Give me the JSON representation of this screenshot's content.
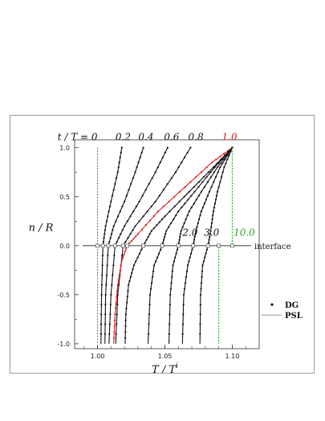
{
  "chart_data": {
    "type": "line",
    "xlabel": "T / T",
    "xlabel_superscript": "i",
    "ylabel": "n / R",
    "xlim": [
      0.983,
      1.12
    ],
    "ylim": [
      -1.05,
      1.08
    ],
    "x_ticks": [
      "1.00",
      "1.05",
      "1.10"
    ],
    "x_tick_values": [
      1.0,
      1.05,
      1.1
    ],
    "y_ticks": [
      "1.0",
      "0.5",
      "0.0",
      "-0.5",
      "-1.0"
    ],
    "y_tick_values": [
      1.0,
      0.5,
      0.0,
      -0.5,
      -1.0
    ],
    "time_label_prefix": "t / T = ",
    "interface_label": "interface",
    "grid": false,
    "legend_position": "bottom-right",
    "legend": [
      {
        "label": "DG",
        "marker": "dot"
      },
      {
        "label": "PSL",
        "marker": "line"
      }
    ],
    "colors": {
      "default": "#111111",
      "initial": "#1e8fd8",
      "highlight": "#e02020",
      "steady": "#2ca02c",
      "psl": "#9a9a9a"
    },
    "series": [
      {
        "name": "0",
        "label_style": "default",
        "color": "#1e8fd8",
        "points": [
          [
            1.0,
            1.0
          ],
          [
            1.0,
            0.0
          ],
          [
            1.0,
            -1.0
          ]
        ]
      },
      {
        "name": "0.2",
        "label_style": "default",
        "color": "#111111",
        "points": [
          [
            1.018,
            1.0
          ],
          [
            1.015,
            0.75
          ],
          [
            1.01,
            0.45
          ],
          [
            1.006,
            0.2
          ],
          [
            1.004,
            0.0
          ],
          [
            1.003,
            -0.5
          ],
          [
            1.0025,
            -1.0
          ]
        ]
      },
      {
        "name": "0.4",
        "label_style": "default",
        "color": "#111111",
        "points": [
          [
            1.034,
            1.0
          ],
          [
            1.028,
            0.75
          ],
          [
            1.02,
            0.45
          ],
          [
            1.012,
            0.2
          ],
          [
            1.008,
            0.0
          ],
          [
            1.006,
            -0.5
          ],
          [
            1.0055,
            -1.0
          ]
        ]
      },
      {
        "name": "0.6",
        "label_style": "default",
        "color": "#111111",
        "points": [
          [
            1.052,
            1.0
          ],
          [
            1.043,
            0.75
          ],
          [
            1.031,
            0.45
          ],
          [
            1.02,
            0.2
          ],
          [
            1.013,
            0.0
          ],
          [
            1.01,
            -0.5
          ],
          [
            1.0085,
            -1.0
          ]
        ]
      },
      {
        "name": "0.8",
        "label_style": "default",
        "color": "#111111",
        "points": [
          [
            1.069,
            1.0
          ],
          [
            1.058,
            0.75
          ],
          [
            1.043,
            0.45
          ],
          [
            1.028,
            0.2
          ],
          [
            1.019,
            0.0
          ],
          [
            1.015,
            -0.5
          ],
          [
            1.0135,
            -1.0
          ]
        ]
      },
      {
        "name": "1.0",
        "label_style": "highlight",
        "color": "#e02020",
        "points": [
          [
            1.1,
            1.0
          ],
          [
            1.085,
            0.85
          ],
          [
            1.065,
            0.6
          ],
          [
            1.045,
            0.35
          ],
          [
            1.03,
            0.12
          ],
          [
            1.022,
            0.0
          ],
          [
            1.018,
            -0.15
          ],
          [
            1.015,
            -0.4
          ],
          [
            1.013,
            -0.7
          ],
          [
            1.012,
            -1.0
          ]
        ]
      },
      {
        "name": "",
        "label_style": "default",
        "color": "#111111",
        "points": [
          [
            1.1,
            1.0
          ],
          [
            1.086,
            0.8
          ],
          [
            1.068,
            0.55
          ],
          [
            1.05,
            0.3
          ],
          [
            1.04,
            0.15
          ],
          [
            1.034,
            0.0
          ],
          [
            1.027,
            -0.2
          ],
          [
            1.023,
            -0.4
          ],
          [
            1.021,
            -0.7
          ],
          [
            1.0205,
            -1.0
          ]
        ]
      },
      {
        "name": "",
        "label_style": "default",
        "color": "#111111",
        "points": [
          [
            1.1,
            1.0
          ],
          [
            1.087,
            0.8
          ],
          [
            1.072,
            0.55
          ],
          [
            1.06,
            0.35
          ],
          [
            1.051,
            0.15
          ],
          [
            1.048,
            0.0
          ],
          [
            1.042,
            -0.2
          ],
          [
            1.039,
            -0.5
          ],
          [
            1.0375,
            -1.0
          ]
        ]
      },
      {
        "name": "",
        "label_style": "default",
        "color": "#111111",
        "points": [
          [
            1.1,
            1.0
          ],
          [
            1.089,
            0.8
          ],
          [
            1.077,
            0.55
          ],
          [
            1.068,
            0.35
          ],
          [
            1.062,
            0.15
          ],
          [
            1.06,
            0.0
          ],
          [
            1.056,
            -0.2
          ],
          [
            1.054,
            -0.5
          ],
          [
            1.053,
            -1.0
          ]
        ]
      },
      {
        "name": "2.0",
        "label_style": "default",
        "color": "#111111",
        "points": [
          [
            1.1,
            1.0
          ],
          [
            1.091,
            0.8
          ],
          [
            1.083,
            0.55
          ],
          [
            1.077,
            0.35
          ],
          [
            1.073,
            0.15
          ],
          [
            1.071,
            0.0
          ],
          [
            1.067,
            -0.2
          ],
          [
            1.064,
            -0.5
          ],
          [
            1.063,
            -1.0
          ]
        ]
      },
      {
        "name": "3.0",
        "label_style": "default",
        "color": "#111111",
        "points": [
          [
            1.1,
            1.0
          ],
          [
            1.094,
            0.8
          ],
          [
            1.089,
            0.55
          ],
          [
            1.086,
            0.35
          ],
          [
            1.084,
            0.15
          ],
          [
            1.082,
            0.0
          ],
          [
            1.078,
            -0.2
          ],
          [
            1.0765,
            -0.5
          ],
          [
            1.076,
            -1.0
          ]
        ]
      },
      {
        "name": "10.0",
        "label_style": "steady",
        "color": "#2ca02c",
        "points": [
          [
            1.1,
            1.0
          ],
          [
            1.1,
            0.0
          ],
          [
            1.09,
            0.0
          ],
          [
            1.09,
            -1.0
          ]
        ]
      }
    ],
    "interface_markers_x": [
      1.0,
      1.004,
      1.008,
      1.013,
      1.019,
      1.022,
      1.034,
      1.048,
      1.06,
      1.071,
      1.082,
      1.09,
      1.1
    ]
  }
}
